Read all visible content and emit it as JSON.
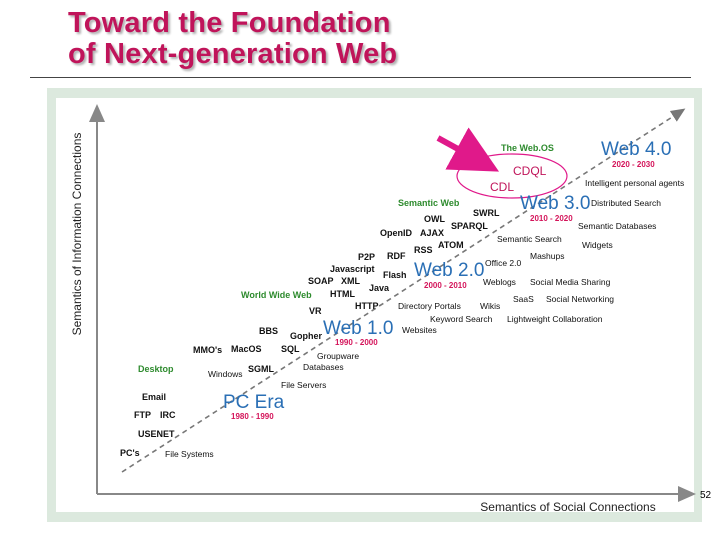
{
  "slide": {
    "title_line1": "Toward the Foundation",
    "title_line2": "of Next-generation Web",
    "page_number": "52"
  },
  "axes": {
    "y_label": "Semantics of Information Connections",
    "x_label": "Semantics of Social Connections"
  },
  "colors": {
    "title": "#c0145a",
    "era_blue": "#2a6fb5",
    "era_years": "#d4145a",
    "green_label": "#2e8b2e",
    "callout_arrow": "#e0198a",
    "callout_ellipse": "#e0198a",
    "diagonal": "#777777"
  },
  "eras": [
    {
      "name": "PC Era",
      "years": "1980 - 1990"
    },
    {
      "name": "Web 1.0",
      "years": "1990 - 2000"
    },
    {
      "name": "Web 2.0",
      "years": "2000 - 2010"
    },
    {
      "name": "Web 3.0",
      "years": "2010 - 2020"
    },
    {
      "name": "Web 4.0",
      "years": "2020 - 2030"
    }
  ],
  "category_labels": {
    "desktop": "Desktop",
    "www": "World Wide Web",
    "semantic_web": "Semantic Web",
    "web_os": "The Web.OS"
  },
  "callout": {
    "line1": "CDQL",
    "line2": "CDL"
  },
  "terms": {
    "pcs": "PC's",
    "file_systems": "File Systems",
    "usenet": "USENET",
    "ftp": "FTP",
    "irc": "IRC",
    "email": "Email",
    "file_servers": "File Servers",
    "windows": "Windows",
    "sgml": "SGML",
    "databases": "Databases",
    "mmos": "MMO's",
    "macos": "MacOS",
    "sql": "SQL",
    "groupware": "Groupware",
    "bbs": "BBS",
    "gopher": "Gopher",
    "vr": "VR",
    "websites": "Websites",
    "http": "HTTP",
    "html": "HTML",
    "java": "Java",
    "soap": "SOAP",
    "xml": "XML",
    "flash": "Flash",
    "javascript": "Javascript",
    "p2p": "P2P",
    "rdf": "RDF",
    "rss": "RSS",
    "atom": "ATOM",
    "openid": "OpenID",
    "ajax": "AJAX",
    "owl": "OWL",
    "sparql": "SPARQL",
    "swrl": "SWRL",
    "directory_portals": "Directory Portals",
    "wikis": "Wikis",
    "keyword_search": "Keyword Search",
    "lightweight_collab": "Lightweight Collaboration",
    "saas": "SaaS",
    "social_networking": "Social Networking",
    "weblogs": "Weblogs",
    "social_media_sharing": "Social Media Sharing",
    "office20": "Office 2.0",
    "mashups": "Mashups",
    "semantic_search": "Semantic Search",
    "widgets": "Widgets",
    "semantic_databases": "Semantic Databases",
    "distributed_search": "Distributed Search",
    "intelligent_agents": "Intelligent personal agents"
  }
}
